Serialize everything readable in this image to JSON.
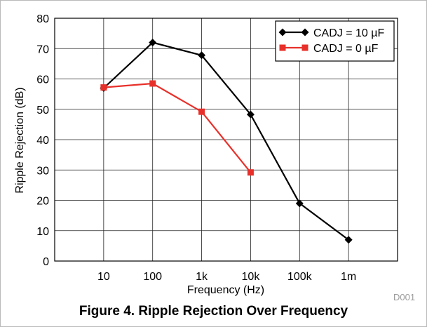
{
  "figure": {
    "caption": "Figure 4. Ripple Rejection Over Frequency",
    "doc_id": "D001"
  },
  "chart_data": {
    "type": "line",
    "title": "",
    "xlabel": "Frequency (Hz)",
    "ylabel": "Ripple Rejection (dB)",
    "x_scale": "log",
    "x_ticks": [
      10,
      100,
      1000,
      10000,
      100000,
      1000000
    ],
    "x_tick_labels": [
      "10",
      "100",
      "1k",
      "10k",
      "100k",
      "1m"
    ],
    "xlim": [
      1,
      10000000
    ],
    "ylim": [
      0,
      80
    ],
    "y_ticks": [
      0,
      10,
      20,
      30,
      40,
      50,
      60,
      70,
      80
    ],
    "grid": true,
    "legend_position": "top-right",
    "series": [
      {
        "name": "CADJ = 10 µF",
        "color": "#000000",
        "marker": "diamond",
        "x": [
          10,
          100,
          1000,
          10000,
          100000,
          1000000
        ],
        "y": [
          57,
          72,
          67.8,
          48.3,
          19,
          7
        ]
      },
      {
        "name": "CADJ = 0 µF",
        "color": "#e8302a",
        "marker": "square",
        "x": [
          10,
          100,
          1000,
          10000
        ],
        "y": [
          57.2,
          58.5,
          49.2,
          29.2
        ]
      }
    ]
  }
}
